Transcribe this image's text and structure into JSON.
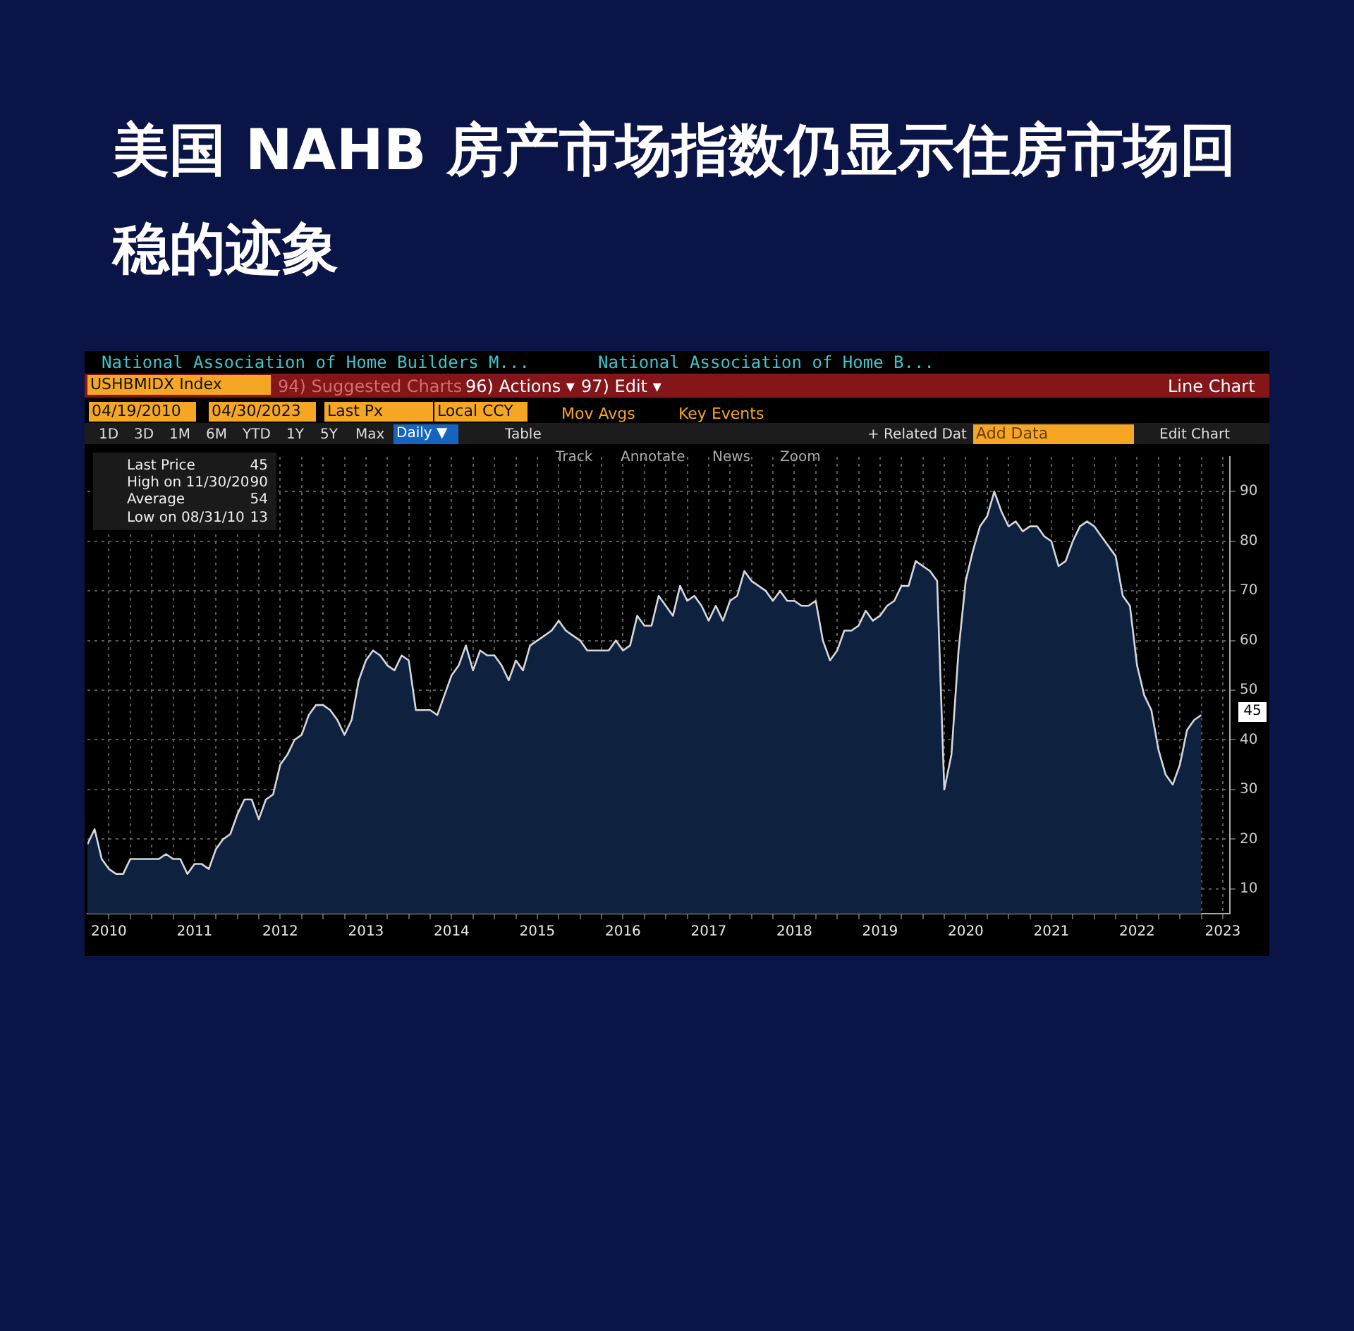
{
  "chart_data": {
    "type": "area",
    "title": "美国 NAHB 房产市场指数仍显示住房市场回稳的迹象",
    "subtitle": "National Association of Home Builders M...",
    "annotations": [
      "National Association of Home B...",
      "USHBMIDX Index",
      "94) Suggested Charts",
      "96) Actions ▾",
      "97) Edit ▾",
      "Line Chart",
      "04/19/2010",
      "04/30/2023",
      "Last Px",
      "Local CCY",
      "Mov Avgs",
      "Key Events",
      "1D",
      "3D",
      "1M",
      "6M",
      "YTD",
      "1Y",
      "5Y",
      "Max",
      "Daily ▼",
      "Table",
      "+ Related Dat",
      "Add Data",
      "Edit Chart",
      "Track",
      "Annotate",
      "News",
      "Zoom",
      "Last Price",
      "45",
      "High on 11/30/20",
      "90",
      "Average",
      "54",
      "Low on 08/31/10",
      "13",
      "45"
    ],
    "x": [
      "2010-04",
      "2010-05",
      "2010-06",
      "2010-07",
      "2010-08",
      "2010-09",
      "2010-10",
      "2010-11",
      "2010-12",
      "2011-01",
      "2011-02",
      "2011-03",
      "2011-04",
      "2011-05",
      "2011-06",
      "2011-07",
      "2011-08",
      "2011-09",
      "2011-10",
      "2011-11",
      "2011-12",
      "2012-01",
      "2012-02",
      "2012-03",
      "2012-04",
      "2012-05",
      "2012-06",
      "2012-07",
      "2012-08",
      "2012-09",
      "2012-10",
      "2012-11",
      "2012-12",
      "2013-01",
      "2013-02",
      "2013-03",
      "2013-04",
      "2013-05",
      "2013-06",
      "2013-07",
      "2013-08",
      "2013-09",
      "2013-10",
      "2013-11",
      "2013-12",
      "2014-01",
      "2014-02",
      "2014-03",
      "2014-04",
      "2014-05",
      "2014-06",
      "2014-07",
      "2014-08",
      "2014-09",
      "2014-10",
      "2014-11",
      "2014-12",
      "2015-01",
      "2015-02",
      "2015-03",
      "2015-04",
      "2015-05",
      "2015-06",
      "2015-07",
      "2015-08",
      "2015-09",
      "2015-10",
      "2015-11",
      "2015-12",
      "2016-01",
      "2016-02",
      "2016-03",
      "2016-04",
      "2016-05",
      "2016-06",
      "2016-07",
      "2016-08",
      "2016-09",
      "2016-10",
      "2016-11",
      "2016-12",
      "2017-01",
      "2017-02",
      "2017-03",
      "2017-04",
      "2017-05",
      "2017-06",
      "2017-07",
      "2017-08",
      "2017-09",
      "2017-10",
      "2017-11",
      "2017-12",
      "2018-01",
      "2018-02",
      "2018-03",
      "2018-04",
      "2018-05",
      "2018-06",
      "2018-07",
      "2018-08",
      "2018-09",
      "2018-10",
      "2018-11",
      "2018-12",
      "2019-01",
      "2019-02",
      "2019-03",
      "2019-04",
      "2019-05",
      "2019-06",
      "2019-07",
      "2019-08",
      "2019-09",
      "2019-10",
      "2019-11",
      "2019-12",
      "2020-01",
      "2020-02",
      "2020-03",
      "2020-04",
      "2020-05",
      "2020-06",
      "2020-07",
      "2020-08",
      "2020-09",
      "2020-10",
      "2020-11",
      "2020-12",
      "2021-01",
      "2021-02",
      "2021-03",
      "2021-04",
      "2021-05",
      "2021-06",
      "2021-07",
      "2021-08",
      "2021-09",
      "2021-10",
      "2021-11",
      "2021-12",
      "2022-01",
      "2022-02",
      "2022-03",
      "2022-04",
      "2022-05",
      "2022-06",
      "2022-07",
      "2022-08",
      "2022-09",
      "2022-10",
      "2022-11",
      "2022-12",
      "2023-01",
      "2023-02",
      "2023-03",
      "2023-04"
    ],
    "series": [
      {
        "color": "#0e2240",
        "values": [
          19,
          22,
          16,
          14,
          13,
          13,
          16,
          16,
          16,
          16,
          16,
          17,
          16,
          16,
          13,
          15,
          15,
          14,
          18,
          20,
          21,
          25,
          28,
          28,
          24,
          28,
          29,
          35,
          37,
          40,
          41,
          45,
          47,
          47,
          46,
          44,
          41,
          44,
          52,
          56,
          58,
          57,
          55,
          54,
          57,
          56,
          46,
          46,
          46,
          45,
          49,
          53,
          55,
          59,
          54,
          58,
          57,
          57,
          55,
          52,
          56,
          54,
          59,
          60,
          61,
          62,
          64,
          62,
          61,
          60,
          58,
          58,
          58,
          58,
          60,
          58,
          59,
          65,
          63,
          63,
          69,
          67,
          65,
          71,
          68,
          69,
          67,
          64,
          67,
          64,
          68,
          69,
          74,
          72,
          71,
          70,
          68,
          70,
          68,
          68,
          67,
          67,
          68,
          60,
          56,
          58,
          62,
          62,
          63,
          66,
          64,
          65,
          67,
          68,
          71,
          71,
          76,
          75,
          74,
          72,
          30,
          37,
          58,
          72,
          78,
          83,
          85,
          90,
          86,
          83,
          84,
          82,
          83,
          83,
          81,
          80,
          75,
          76,
          80,
          83,
          84,
          83,
          81,
          79,
          77,
          69,
          67,
          55,
          49,
          46,
          38,
          33,
          31,
          35,
          42,
          44,
          45
        ]
      }
    ],
    "xlim": [
      "2010-04-01",
      "2023-08-01"
    ],
    "xticks": [
      {
        "value": "2010-07-01",
        "label": "2010"
      },
      {
        "value": "2010-10-01",
        "label": null
      },
      {
        "value": "2011-01-01",
        "label": null
      },
      {
        "value": "2011-04-01",
        "label": null
      },
      {
        "value": "2011-07-01",
        "label": "2011"
      },
      {
        "value": "2011-10-01",
        "label": null
      },
      {
        "value": "2012-01-01",
        "label": null
      },
      {
        "value": "2012-04-01",
        "label": null
      },
      {
        "value": "2012-07-01",
        "label": "2012"
      },
      {
        "value": "2012-10-01",
        "label": null
      },
      {
        "value": "2013-01-01",
        "label": null
      },
      {
        "value": "2013-04-01",
        "label": null
      },
      {
        "value": "2013-07-01",
        "label": "2013"
      },
      {
        "value": "2013-10-01",
        "label": null
      },
      {
        "value": "2014-01-01",
        "label": null
      },
      {
        "value": "2014-04-01",
        "label": null
      },
      {
        "value": "2014-07-01",
        "label": "2014"
      },
      {
        "value": "2014-10-01",
        "label": null
      },
      {
        "value": "2015-01-01",
        "label": null
      },
      {
        "value": "2015-04-01",
        "label": null
      },
      {
        "value": "2015-07-01",
        "label": "2015"
      },
      {
        "value": "2015-10-01",
        "label": null
      },
      {
        "value": "2016-01-01",
        "label": null
      },
      {
        "value": "2016-04-01",
        "label": null
      },
      {
        "value": "2016-07-01",
        "label": "2016"
      },
      {
        "value": "2016-10-01",
        "label": null
      },
      {
        "value": "2017-01-01",
        "label": null
      },
      {
        "value": "2017-04-01",
        "label": null
      },
      {
        "value": "2017-07-01",
        "label": "2017"
      },
      {
        "value": "2017-10-01",
        "label": null
      },
      {
        "value": "2018-01-01",
        "label": null
      },
      {
        "value": "2018-04-01",
        "label": null
      },
      {
        "value": "2018-07-01",
        "label": "2018"
      },
      {
        "value": "2018-10-01",
        "label": null
      },
      {
        "value": "2019-01-01",
        "label": null
      },
      {
        "value": "2019-04-01",
        "label": null
      },
      {
        "value": "2019-07-01",
        "label": "2019"
      },
      {
        "value": "2019-10-01",
        "label": null
      },
      {
        "value": "2020-01-01",
        "label": null
      },
      {
        "value": "2020-04-01",
        "label": null
      },
      {
        "value": "2020-07-01",
        "label": "2020"
      },
      {
        "value": "2020-10-01",
        "label": null
      },
      {
        "value": "2021-01-01",
        "label": null
      },
      {
        "value": "2021-04-01",
        "label": null
      },
      {
        "value": "2021-07-01",
        "label": "2021"
      },
      {
        "value": "2021-10-01",
        "label": null
      },
      {
        "value": "2022-01-01",
        "label": null
      },
      {
        "value": "2022-04-01",
        "label": null
      },
      {
        "value": "2022-07-01",
        "label": "2022"
      },
      {
        "value": "2022-10-01",
        "label": null
      },
      {
        "value": "2023-01-01",
        "label": null
      },
      {
        "value": "2023-04-01",
        "label": null
      },
      {
        "value": "2023-07-01",
        "label": "2023"
      }
    ],
    "ylim": [
      5,
      97
    ],
    "yticks": [
      10,
      20,
      30,
      40,
      50,
      60,
      70,
      80,
      90
    ],
    "grid": true
  }
}
